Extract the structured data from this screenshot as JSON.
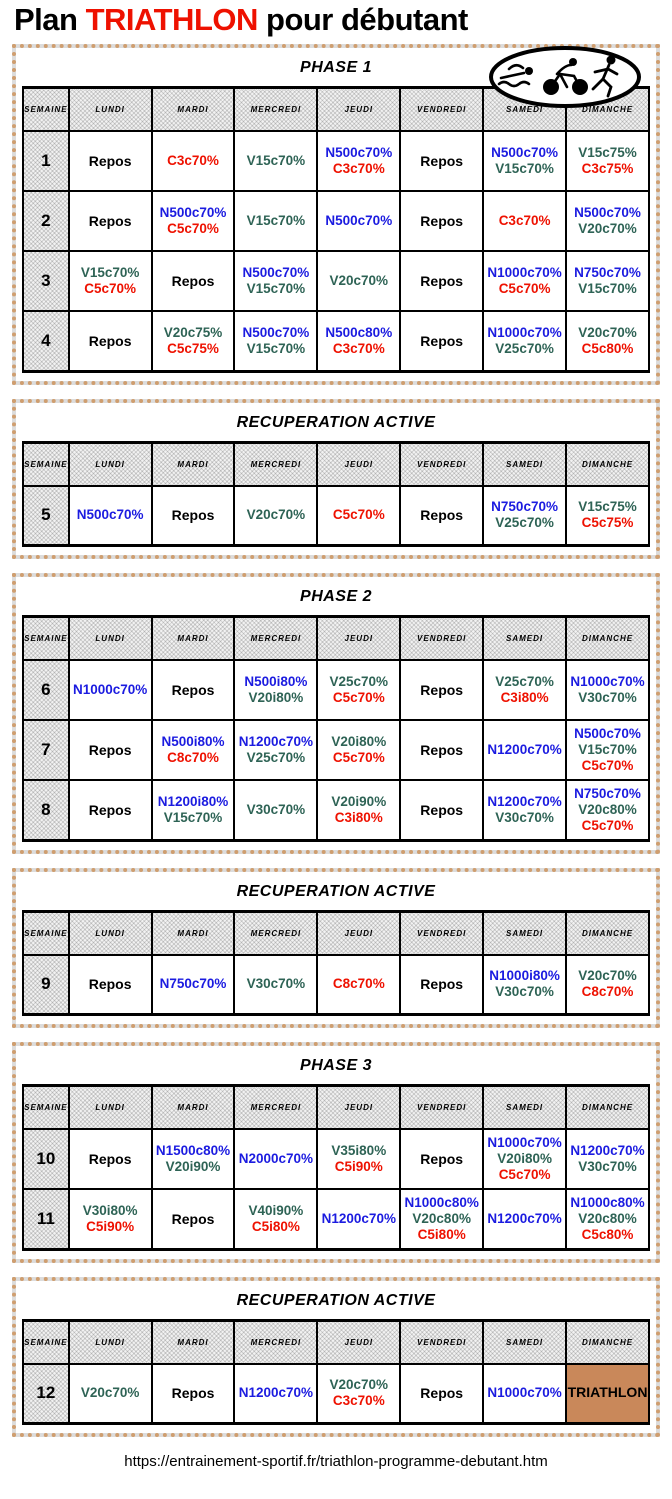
{
  "title": {
    "part1": "Plan ",
    "highlight": "TRIATHLON",
    "part2": " pour débutant"
  },
  "logo": {
    "icons": [
      "swimmer-icon",
      "cyclist-icon",
      "runner-icon"
    ]
  },
  "columns": [
    "SEMAINE",
    "LUNDI",
    "MARDI",
    "MERCREDI",
    "JEUDI",
    "VENDREDI",
    "SAMEDI",
    "DIMANCHE"
  ],
  "colors": {
    "swim": "#1b1be0",
    "bike": "#2e6355",
    "run": "#ee1100",
    "rest": "#000000",
    "triathlon_bg": "#c9885a",
    "frame_dot": "#cf9e6f",
    "frame_gray": "#dcdcdc"
  },
  "sections": [
    {
      "title": "PHASE 1",
      "rows": [
        {
          "week": "1",
          "days": [
            [
              "Repos"
            ],
            [
              "C3c70%"
            ],
            [
              "V15c70%"
            ],
            [
              "N500c70%",
              "C3c70%"
            ],
            [
              "Repos"
            ],
            [
              "N500c70%",
              "V15c70%"
            ],
            [
              "V15c75%",
              "C3c75%"
            ]
          ]
        },
        {
          "week": "2",
          "days": [
            [
              "Repos"
            ],
            [
              "N500c70%",
              "C5c70%"
            ],
            [
              "V15c70%"
            ],
            [
              "N500c70%"
            ],
            [
              "Repos"
            ],
            [
              "C3c70%"
            ],
            [
              "N500c70%",
              "V20c70%"
            ]
          ]
        },
        {
          "week": "3",
          "days": [
            [
              "V15c70%",
              "C5c70%"
            ],
            [
              "Repos"
            ],
            [
              "N500c70%",
              "V15c70%"
            ],
            [
              "V20c70%"
            ],
            [
              "Repos"
            ],
            [
              "N1000c70%",
              "C5c70%"
            ],
            [
              "N750c70%",
              "V15c70%"
            ]
          ]
        },
        {
          "week": "4",
          "days": [
            [
              "Repos"
            ],
            [
              "V20c75%",
              "C5c75%"
            ],
            [
              "N500c70%",
              "V15c70%"
            ],
            [
              "N500c80%",
              "C3c70%"
            ],
            [
              "Repos"
            ],
            [
              "N1000c70%",
              "V25c70%"
            ],
            [
              "V20c70%",
              "C5c80%"
            ]
          ]
        }
      ]
    },
    {
      "title": "RECUPERATION ACTIVE",
      "rows": [
        {
          "week": "5",
          "days": [
            [
              "N500c70%"
            ],
            [
              "Repos"
            ],
            [
              "V20c70%"
            ],
            [
              "C5c70%"
            ],
            [
              "Repos"
            ],
            [
              "N750c70%",
              "V25c70%"
            ],
            [
              "V15c75%",
              "C5c75%"
            ]
          ]
        }
      ]
    },
    {
      "title": "PHASE 2",
      "rows": [
        {
          "week": "6",
          "days": [
            [
              "N1000c70%"
            ],
            [
              "Repos"
            ],
            [
              "N500i80%",
              "V20i80%"
            ],
            [
              "V25c70%",
              "C5c70%"
            ],
            [
              "Repos"
            ],
            [
              "V25c70%",
              "C3i80%"
            ],
            [
              "N1000c70%",
              "V30c70%"
            ]
          ]
        },
        {
          "week": "7",
          "days": [
            [
              "Repos"
            ],
            [
              "N500i80%",
              "C8c70%"
            ],
            [
              "N1200c70%",
              "V25c70%"
            ],
            [
              "V20i80%",
              "C5c70%"
            ],
            [
              "Repos"
            ],
            [
              "N1200c70%"
            ],
            [
              "N500c70%",
              "V15c70%",
              "C5c70%"
            ]
          ]
        },
        {
          "week": "8",
          "days": [
            [
              "Repos"
            ],
            [
              "N1200i80%",
              "V15c70%"
            ],
            [
              "V30c70%"
            ],
            [
              "V20i90%",
              "C3i80%"
            ],
            [
              "Repos"
            ],
            [
              "N1200c70%",
              "V30c70%"
            ],
            [
              "N750c70%",
              "V20c80%",
              "C5c70%"
            ]
          ]
        }
      ]
    },
    {
      "title": "RECUPERATION ACTIVE",
      "rows": [
        {
          "week": "9",
          "days": [
            [
              "Repos"
            ],
            [
              "N750c70%"
            ],
            [
              "V30c70%"
            ],
            [
              "C8c70%"
            ],
            [
              "Repos"
            ],
            [
              "N1000i80%",
              "V30c70%"
            ],
            [
              "V20c70%",
              "C8c70%"
            ]
          ]
        }
      ]
    },
    {
      "title": "PHASE 3",
      "rows": [
        {
          "week": "10",
          "days": [
            [
              "Repos"
            ],
            [
              "N1500c80%",
              "V20i90%"
            ],
            [
              "N2000c70%"
            ],
            [
              "V35i80%",
              "C5i90%"
            ],
            [
              "Repos"
            ],
            [
              "N1000c70%",
              "V20i80%",
              "C5c70%"
            ],
            [
              "N1200c70%",
              "V30c70%"
            ]
          ]
        },
        {
          "week": "11",
          "days": [
            [
              "V30i80%",
              "C5i90%"
            ],
            [
              "Repos"
            ],
            [
              "V40i90%",
              "C5i80%"
            ],
            [
              "N1200c70%"
            ],
            [
              "N1000c80%",
              "V20c80%",
              "C5i80%"
            ],
            [
              "N1200c70%"
            ],
            [
              "N1000c80%",
              "V20c80%",
              "C5c80%"
            ]
          ]
        }
      ]
    },
    {
      "title": "RECUPERATION ACTIVE",
      "rows": [
        {
          "week": "12",
          "days": [
            [
              "V20c70%"
            ],
            [
              "Repos"
            ],
            [
              "N1200c70%"
            ],
            [
              "V20c70%",
              "C3c70%"
            ],
            [
              "Repos"
            ],
            [
              "N1000c70%"
            ],
            [
              "TRIATHLON"
            ]
          ]
        }
      ]
    }
  ],
  "footer": {
    "url": "https://entrainement-sportif.fr/triathlon-programme-debutant.htm"
  }
}
